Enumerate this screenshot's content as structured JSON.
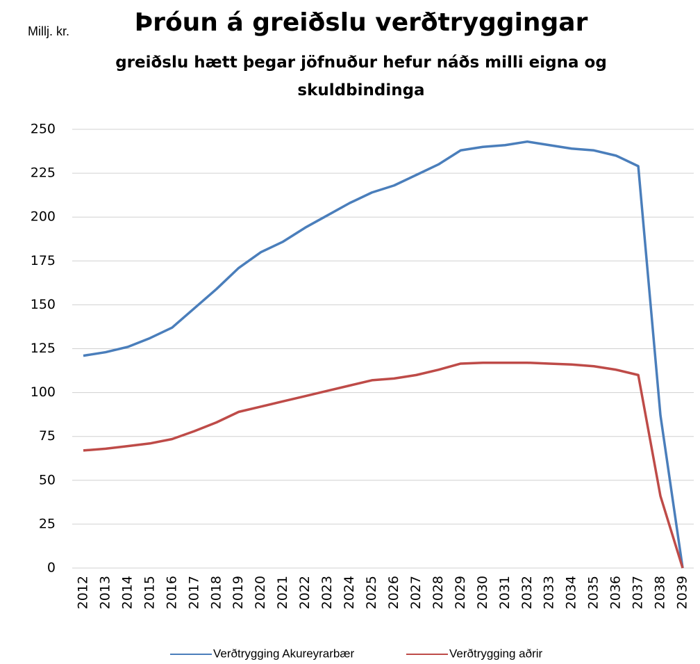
{
  "chart_data": {
    "type": "line",
    "title": "Þróun á greiðslu verðtryggingar",
    "subtitle": "greiðslu hætt þegar jöfnuður hefur náðs milli eigna og skuldbindinga",
    "y_label": "Millj. kr.",
    "categories": [
      "2012",
      "2013",
      "2014",
      "2015",
      "2016",
      "2017",
      "2018",
      "2019",
      "2020",
      "2021",
      "2022",
      "2023",
      "2024",
      "2025",
      "2026",
      "2027",
      "2028",
      "2029",
      "2030",
      "2031",
      "2032",
      "2033",
      "2034",
      "2035",
      "2036",
      "2037",
      "2038",
      "2039"
    ],
    "series": [
      {
        "name": "Verðtrygging Akureyrarbær",
        "color": "#4a7ebb",
        "values": [
          121,
          123,
          126,
          131,
          137,
          148,
          159,
          171,
          180,
          186,
          194,
          201,
          208,
          214,
          218,
          224,
          230,
          238,
          240,
          241,
          243,
          241,
          239,
          238,
          235,
          229,
          87,
          0
        ]
      },
      {
        "name": "Verðtrygging aðrir",
        "color": "#be4b48",
        "values": [
          67,
          68,
          69.5,
          71,
          73.5,
          78,
          83,
          89,
          92,
          95,
          98,
          101,
          104,
          107,
          108,
          110,
          113,
          116.5,
          117,
          117,
          117,
          116.5,
          116,
          115,
          113,
          110,
          41,
          0
        ]
      }
    ],
    "ylim": [
      0,
      250
    ],
    "yticks": [
      0,
      25,
      50,
      75,
      100,
      125,
      150,
      175,
      200,
      225,
      250
    ],
    "grid": true,
    "legend": "bottom"
  }
}
